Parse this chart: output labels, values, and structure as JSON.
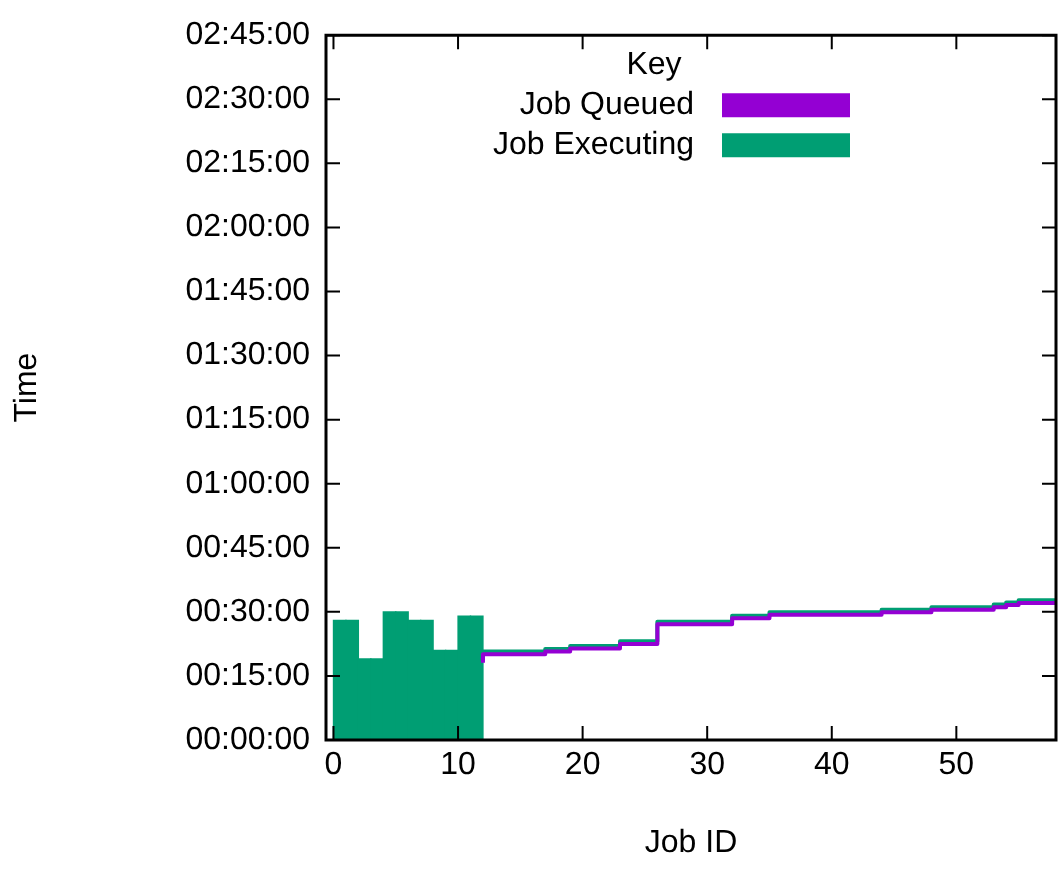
{
  "chart_data": {
    "type": "bar",
    "xlabel": "Job ID",
    "ylabel": "Time",
    "legend_title": "Key",
    "legend": "top right",
    "grid": false,
    "series": [
      {
        "name": "Job Queued",
        "type": "step",
        "color": "#9400d3",
        "x": [
          12,
          13,
          14,
          15,
          16,
          17,
          18,
          19,
          20,
          21,
          22,
          23,
          24,
          25,
          26,
          27,
          28,
          29,
          30,
          31,
          32,
          33,
          34,
          35,
          36,
          37,
          38,
          39,
          40,
          41,
          42,
          43,
          44,
          45,
          46,
          47,
          48,
          49,
          50,
          51,
          52,
          53,
          54,
          55,
          56,
          57,
          58
        ],
        "values": [
          18.1,
          20.1,
          20.1,
          20.1,
          20.1,
          20.1,
          20.7,
          20.7,
          21.4,
          21.4,
          21.4,
          21.4,
          22.5,
          22.5,
          22.5,
          27.1,
          27.1,
          27.1,
          27.1,
          27.1,
          27.1,
          28.5,
          28.5,
          28.5,
          29.3,
          29.3,
          29.3,
          29.3,
          29.3,
          29.3,
          29.3,
          29.3,
          29.3,
          29.9,
          29.9,
          29.9,
          29.9,
          30.5,
          30.5,
          30.5,
          30.5,
          30.5,
          31.1,
          31.6,
          32.1,
          32.1,
          32.1
        ]
      },
      {
        "name": "Job Executing",
        "color": "#009e73",
        "x": [
          0.5,
          1.5,
          2.5,
          3.5,
          4.5,
          5.5,
          6.5,
          7.5,
          8.5,
          9.5,
          10.5,
          11.5
        ],
        "values": [
          28,
          28,
          19,
          19,
          30,
          30,
          28,
          28,
          21,
          21,
          29,
          29
        ]
      },
      {
        "type": "step",
        "color": "#009e73",
        "x": [
          12,
          13,
          14,
          15,
          16,
          17,
          18,
          19,
          20,
          21,
          22,
          23,
          24,
          25,
          26,
          27,
          28,
          29,
          30,
          31,
          32,
          33,
          34,
          35,
          36,
          37,
          38,
          39,
          40,
          41,
          42,
          43,
          44,
          45,
          46,
          47,
          48,
          49,
          50,
          51,
          52,
          53,
          54,
          55,
          56,
          57,
          58
        ],
        "values": [
          18.7,
          20.7,
          20.7,
          20.7,
          20.7,
          20.7,
          21.3,
          21.3,
          22,
          22,
          22,
          22,
          23.1,
          23.1,
          23.1,
          27.7,
          27.7,
          27.7,
          27.7,
          27.7,
          27.7,
          29.1,
          29.1,
          29.1,
          29.9,
          29.9,
          29.9,
          29.9,
          29.9,
          29.9,
          29.9,
          29.9,
          29.9,
          30.5,
          30.5,
          30.5,
          30.5,
          31.1,
          31.1,
          31.1,
          31.1,
          31.1,
          31.7,
          32.2,
          32.7,
          32.7,
          32.7
        ]
      }
    ],
    "xlim": [
      -0.6,
      58
    ],
    "xticks": [
      0,
      10,
      20,
      30,
      40,
      50
    ],
    "ylim": [
      0,
      165
    ],
    "yticks": [
      {
        "value": 0,
        "label": "00:00:00"
      },
      {
        "value": 15,
        "label": "00:15:00"
      },
      {
        "value": 30,
        "label": "00:30:00"
      },
      {
        "value": 45,
        "label": "00:45:00"
      },
      {
        "value": 60,
        "label": "01:00:00"
      },
      {
        "value": 75,
        "label": "01:15:00"
      },
      {
        "value": 90,
        "label": "01:30:00"
      },
      {
        "value": 105,
        "label": "01:45:00"
      },
      {
        "value": 120,
        "label": "02:00:00"
      },
      {
        "value": 135,
        "label": "02:15:00"
      },
      {
        "value": 150,
        "label": "02:30:00"
      },
      {
        "value": 165,
        "label": "02:45:00"
      }
    ]
  }
}
